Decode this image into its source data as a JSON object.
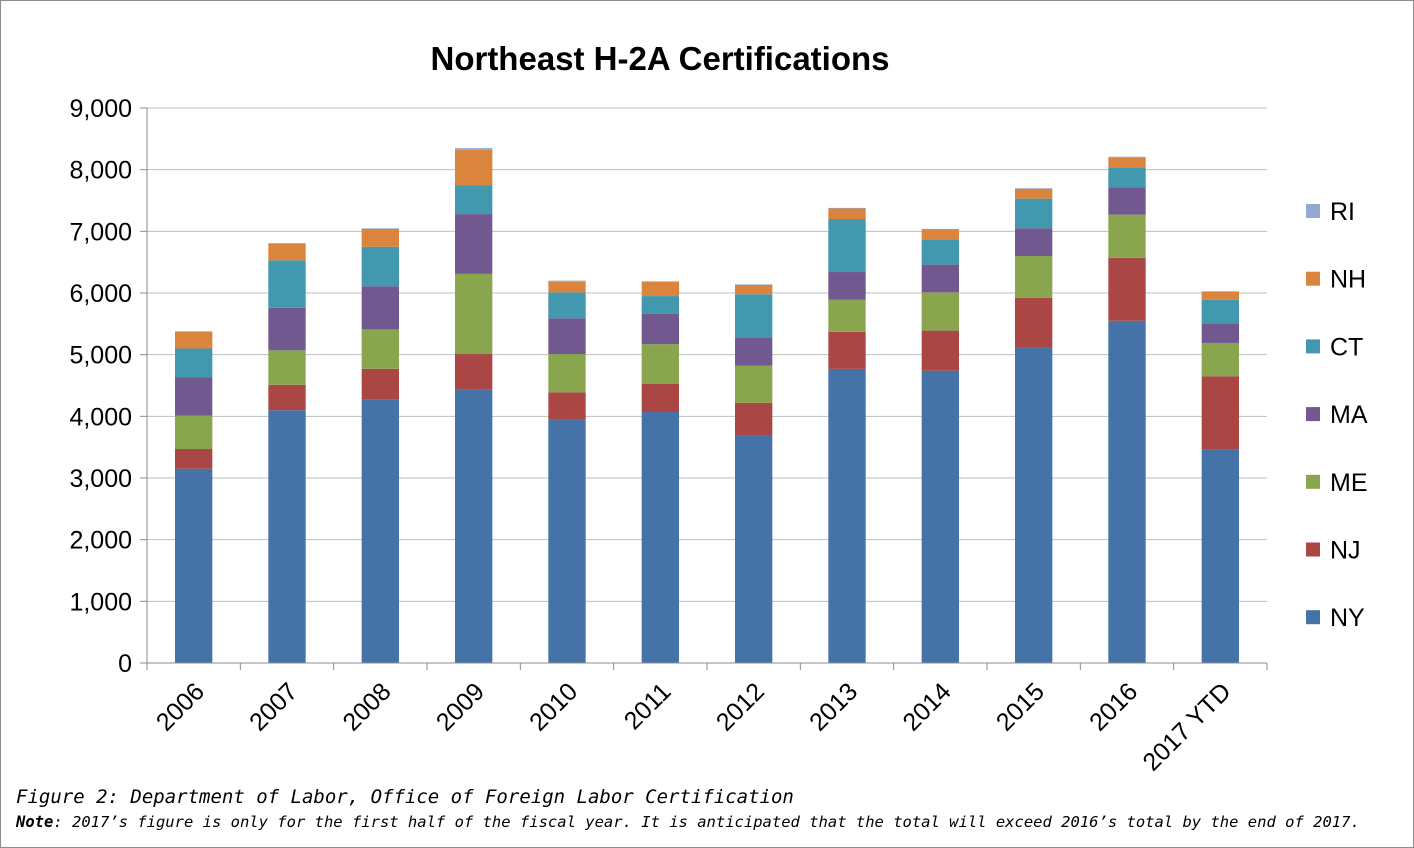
{
  "chart_data": {
    "type": "bar",
    "stacked": true,
    "title": "Northeast H-2A Certifications",
    "categories": [
      "2006",
      "2007",
      "2008",
      "2009",
      "2010",
      "2011",
      "2012",
      "2013",
      "2014",
      "2015",
      "2016",
      "2017 YTD"
    ],
    "ylim": [
      0,
      9000
    ],
    "ytick_step": 1000,
    "ytick_labels": [
      "0",
      "1,000",
      "2,000",
      "3,000",
      "4,000",
      "5,000",
      "6,000",
      "7,000",
      "8,000",
      "9,000"
    ],
    "grid": true,
    "legend_position": "right",
    "series": [
      {
        "name": "NY",
        "color": "#4572A7",
        "values": [
          3150,
          4100,
          4270,
          4430,
          3950,
          4070,
          3690,
          4770,
          4740,
          5110,
          5550,
          3460
        ]
      },
      {
        "name": "NJ",
        "color": "#AA4643",
        "values": [
          320,
          410,
          500,
          580,
          440,
          460,
          530,
          600,
          650,
          810,
          1020,
          1190
        ]
      },
      {
        "name": "ME",
        "color": "#89A54E",
        "values": [
          540,
          560,
          640,
          1300,
          620,
          640,
          600,
          520,
          620,
          680,
          700,
          540
        ]
      },
      {
        "name": "MA",
        "color": "#71588F",
        "values": [
          620,
          690,
          700,
          970,
          580,
          490,
          450,
          450,
          450,
          450,
          440,
          320
        ]
      },
      {
        "name": "CT",
        "color": "#4198AF",
        "values": [
          470,
          770,
          640,
          470,
          420,
          290,
          710,
          860,
          400,
          480,
          330,
          380
        ]
      },
      {
        "name": "NH",
        "color": "#DB843D",
        "values": [
          270,
          270,
          290,
          570,
          180,
          230,
          150,
          170,
          170,
          160,
          160,
          130
        ]
      },
      {
        "name": "RI",
        "color": "#93A9CF",
        "values": [
          10,
          10,
          10,
          30,
          10,
          10,
          10,
          10,
          10,
          10,
          10,
          10
        ]
      }
    ]
  },
  "caption": {
    "source": "Figure 2: Department of Labor, Office of Foreign Labor Certification",
    "note_label": "Note",
    "note_text": ": 2017’s figure is only for the first half of the fiscal year. It is anticipated that the total will exceed 2016’s total by the end of 2017."
  }
}
